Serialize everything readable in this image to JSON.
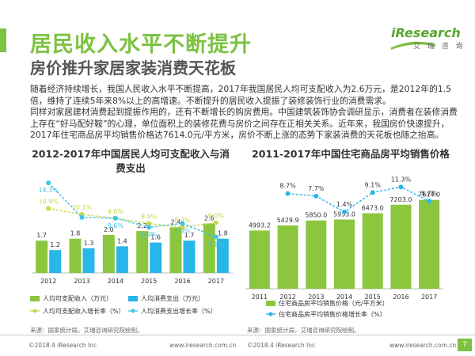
{
  "header": {
    "title": "居民收入水平不断提升",
    "subtitle": "房价推升家居家装消费天花板"
  },
  "logo": {
    "main": "iResearch",
    "sub": "艾 瑞 咨 询"
  },
  "body": {
    "paragraphs": [
      "随着经济持续增长，我国人民收入水平不断提高，2017年我国居民人均可支配收入为2.6万元，是2012年的1.5倍，维持了连续5年来8%以上的高增速。不断提升的居民收入提振了装修装饰行业的消费需求。",
      "同样对家居建材消费起到提振作用的，还有不断增长的购房费用。中国建筑装饰协会调研显示，消费者在装修消费上存在“好马配好鞍”的心理，单位面积上的装修花费与房价之间存在正相关关系。近年来，我国房价快速提升，2017年住宅商品房平均销售价格达7614.0元/平方米，房价不断上涨的态势下家装消费的天花板也随之抬高。"
    ]
  },
  "chart_data": [
    {
      "type": "bar",
      "title": "2012-2017年中国居民人均可支配收入与消费支出",
      "categories": [
        "2012",
        "2013",
        "2014",
        "2015",
        "2016",
        "2017"
      ],
      "series": [
        {
          "name": "人均可支配收入（万元）",
          "kind": "bar",
          "color": "#8cc63f",
          "values": [
            1.7,
            1.8,
            2.0,
            2.2,
            2.4,
            2.6
          ],
          "labels": [
            "1.7",
            "1.8",
            "2.0",
            "2.2",
            "2.4",
            "2.6"
          ]
        },
        {
          "name": "人均消费支出（万元）",
          "kind": "bar",
          "color": "#29b6e8",
          "values": [
            1.2,
            1.3,
            1.4,
            1.6,
            1.7,
            1.8
          ],
          "labels": [
            "1.2",
            "1.3",
            "1.4",
            "1.6",
            "1.7",
            "1.8"
          ]
        },
        {
          "name": "人均可支配收入增长率（%）",
          "kind": "line",
          "color": "#c8d84a",
          "values": [
            10.9,
            10.1,
            9.6,
            8.9,
            8.4,
            9.0
          ],
          "labels": [
            "10.9%",
            "10.1%",
            "9.6%",
            "8.9%",
            "8.4%",
            "9.0%"
          ]
        },
        {
          "name": "人均消费支出增长率（%）",
          "kind": "line",
          "color": "#3fc3e8",
          "values": [
            14.3,
            9.7,
            9.6,
            8.4,
            8.9,
            7.1
          ],
          "labels": [
            "14.3%",
            "",
            "9.6%",
            "8.4%",
            "8.9%",
            "7.1%"
          ]
        }
      ],
      "source": "来源：国家统计局，艾瑞咨询研究院绘制。"
    },
    {
      "type": "bar",
      "title": "2011-2017年中国住宅商品房平均销售价格",
      "categories": [
        "2011",
        "2012",
        "2013",
        "2014",
        "2015",
        "2016",
        "2017"
      ],
      "series": [
        {
          "name": "住宅商品房平均销售价格（元/平方米）",
          "kind": "bar",
          "color": "#8cc63f",
          "values": [
            4993.2,
            5429.9,
            5850.0,
            5933.0,
            6473.0,
            7203.0,
            7614.0
          ],
          "labels": [
            "4993.2",
            "5429.9",
            "5850.0",
            "5933.0",
            "6473.0",
            "7203.0",
            "7614.0"
          ]
        },
        {
          "name": "住宅商品房平均销售价格增长率（%）",
          "kind": "line",
          "color": "#29b6e8",
          "values": [
            null,
            8.7,
            7.7,
            1.4,
            9.1,
            11.3,
            5.7
          ],
          "labels": [
            "",
            "8.7%",
            "7.7%",
            "1.4%",
            "9.1%",
            "11.3%",
            "5.7%"
          ]
        }
      ],
      "source": "来源：国家统计局，艾瑞咨询研究院绘制。"
    }
  ],
  "footer": {
    "copyright_left": "©2018.4 iResearch Inc",
    "url_left": "www.iresearch.com.cn",
    "copyright_right": "©2018.4 iResearch Inc",
    "url_right": "www.iresearch.com.cn",
    "page": "7"
  }
}
